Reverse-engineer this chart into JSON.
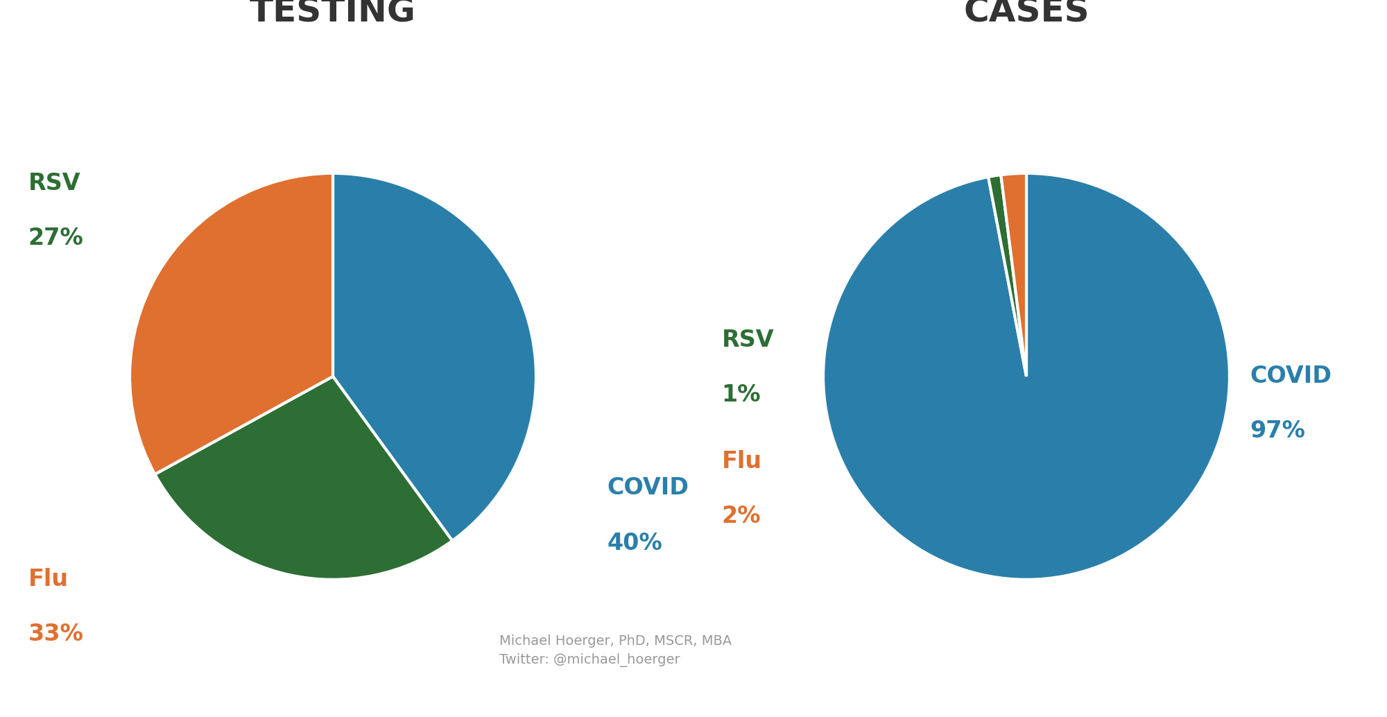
{
  "testing_values": [
    40,
    27,
    33
  ],
  "testing_labels": [
    "COVID",
    "RSV",
    "Flu"
  ],
  "testing_colors": [
    "#2a7faa",
    "#2d6e35",
    "#e07030"
  ],
  "cases_values": [
    97,
    1,
    2
  ],
  "cases_labels": [
    "COVID",
    "RSV",
    "Flu"
  ],
  "cases_colors": [
    "#2a7faa",
    "#2d6e35",
    "#e07030"
  ],
  "title1": "TESTING",
  "title2": "CASES",
  "title_fontsize": 36,
  "title_fontweight": "bold",
  "title_color": "#333333",
  "label_fontsize": 24,
  "label_fontweight": "bold",
  "pct_fontsize": 24,
  "pct_fontweight": "bold",
  "attribution": "Michael Hoerger, PhD, MSCR, MBA\nTwitter: @michael_hoerger",
  "attribution_fontsize": 14,
  "attribution_color": "#999999",
  "background_color": "#ffffff"
}
